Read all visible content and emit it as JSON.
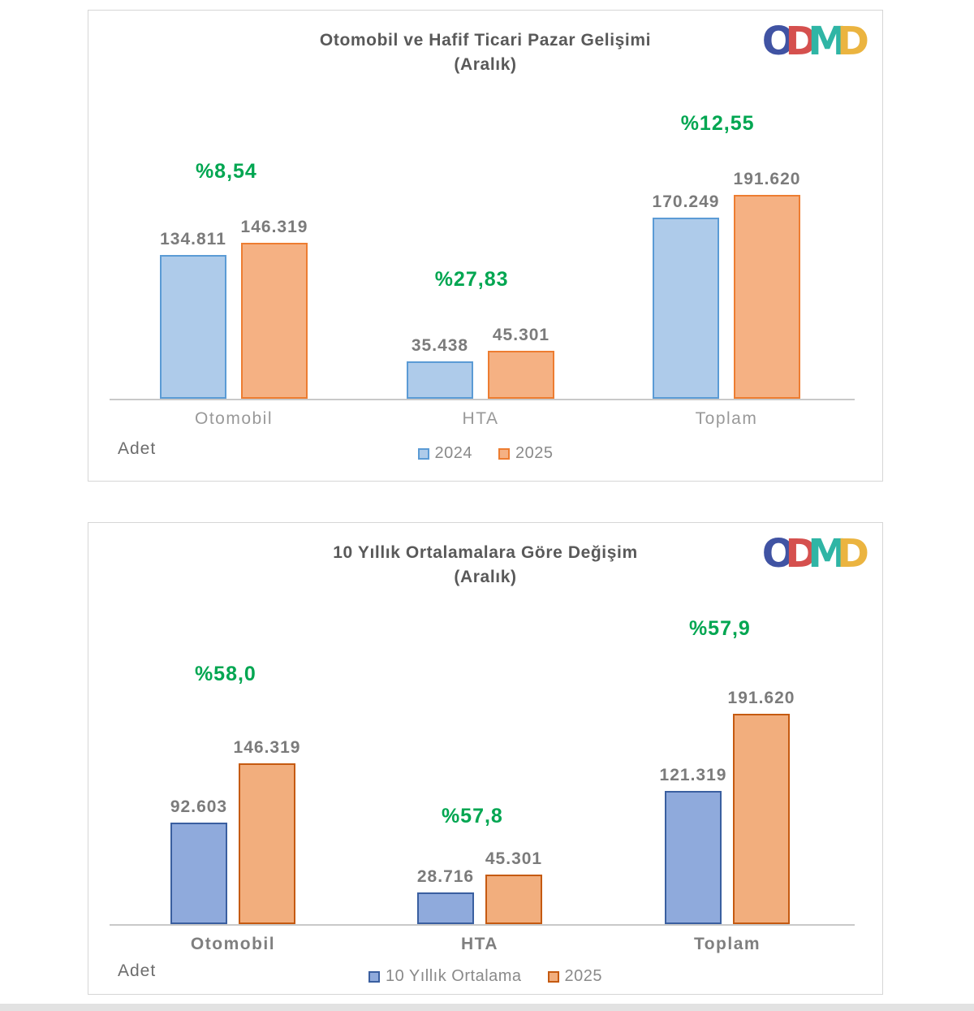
{
  "logo": {
    "letters": [
      {
        "char": "O",
        "color": "#4053A3"
      },
      {
        "char": "D",
        "color": "#D5504E"
      },
      {
        "char": "M",
        "color": "#2FB5A5"
      },
      {
        "char": "D",
        "color": "#EBB440"
      }
    ]
  },
  "accent_colors": {
    "pct_green": "#00A651",
    "title_gray": "#595959",
    "value_gray": "#7B7B7B"
  },
  "chart_data": [
    {
      "type": "bar",
      "title": "Otomobil ve Hafif Ticari Pazar Gelişimi (Aralık)",
      "categories": [
        "Otomobil",
        "HTA",
        "Toplam"
      ],
      "series": [
        {
          "name": "2024",
          "values": [
            134811,
            35438,
            170249
          ],
          "fill": "#AECBEA",
          "border": "#5B9BD5"
        },
        {
          "name": "2025",
          "values": [
            146319,
            45301,
            191620
          ],
          "fill": "#F5B183",
          "border": "#ED7D31"
        }
      ],
      "pct_change": [
        "%8,54",
        "%27,83",
        "%12,55"
      ],
      "ylabel": "Adet",
      "legend_position": "bottom",
      "grid": false,
      "ylim": [
        0,
        200000
      ]
    },
    {
      "type": "bar",
      "title": "10 Yıllık Ortalamalara Göre Değişim (Aralık)",
      "categories": [
        "Otomobil",
        "HTA",
        "Toplam"
      ],
      "series": [
        {
          "name": "10 Yıllık Ortalama",
          "values": [
            92603,
            28716,
            121319
          ],
          "fill": "#8FAADC",
          "border": "#3A5FA0"
        },
        {
          "name": "2025",
          "values": [
            146319,
            45301,
            191620
          ],
          "fill": "#F2AE7D",
          "border": "#C55A11"
        }
      ],
      "pct_change": [
        "%58,0",
        "%57,8",
        "%57,9"
      ],
      "ylabel": "Adet",
      "legend_position": "bottom",
      "grid": false,
      "ylim": [
        0,
        200000
      ]
    }
  ],
  "cards": [
    {
      "title_line1": "Otomobil ve Hafif Ticari Pazar Gelişimi",
      "title_line2": "(Aralık)",
      "unit_label": "Adet",
      "legend": [
        {
          "label": "2024"
        },
        {
          "label": "2025"
        }
      ],
      "groups": [
        {
          "category": "Otomobil",
          "pct": "%8,54",
          "bars": [
            {
              "label": "134.811"
            },
            {
              "label": "146.319"
            }
          ]
        },
        {
          "category": "HTA",
          "pct": "%27,83",
          "bars": [
            {
              "label": "35.438"
            },
            {
              "label": "45.301"
            }
          ]
        },
        {
          "category": "Toplam",
          "pct": "%12,55",
          "bars": [
            {
              "label": "170.249"
            },
            {
              "label": "191.620"
            }
          ]
        }
      ]
    },
    {
      "title_line1": "10 Yıllık Ortalamalara Göre Değişim",
      "title_line2": "(Aralık)",
      "unit_label": "Adet",
      "legend": [
        {
          "label": "10 Yıllık Ortalama"
        },
        {
          "label": "2025"
        }
      ],
      "groups": [
        {
          "category": "Otomobil",
          "pct": "%58,0",
          "bars": [
            {
              "label": "92.603"
            },
            {
              "label": "146.319"
            }
          ]
        },
        {
          "category": "HTA",
          "pct": "%57,8",
          "bars": [
            {
              "label": "28.716"
            },
            {
              "label": "45.301"
            }
          ]
        },
        {
          "category": "Toplam",
          "pct": "%57,9",
          "bars": [
            {
              "label": "121.319"
            },
            {
              "label": "191.620"
            }
          ]
        }
      ]
    }
  ]
}
